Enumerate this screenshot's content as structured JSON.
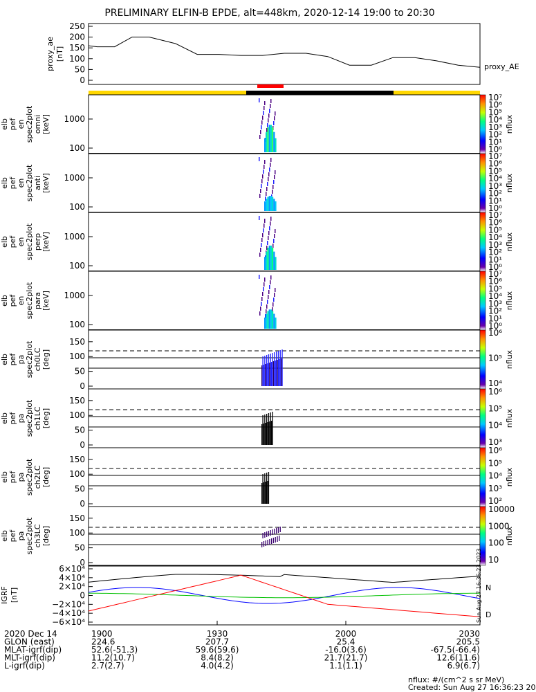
{
  "title": "PRELIMINARY ELFIN-B EPDE, alt=448km, 2020-12-14 19:00 to 20:30",
  "colors": {
    "bar_yellow": "#ffd700",
    "bar_black": "#000000",
    "bar_red": "#ff0000",
    "bx": "#0000ff",
    "by": "#00c000",
    "bz": "#000000",
    "bd": "#ff0000"
  },
  "panels": {
    "ae": {
      "ylabel": [
        "proxy_ae",
        "[nT]"
      ],
      "legend": "proxy_AE"
    },
    "en": [
      {
        "ylabel": [
          "elb",
          "pef",
          "en",
          "spec2plot",
          "omni",
          "[keV]"
        ],
        "cb_label": "nflux"
      },
      {
        "ylabel": [
          "elb",
          "pef",
          "en",
          "spec2plot",
          "anti",
          "[keV]"
        ],
        "cb_label": "nflux"
      },
      {
        "ylabel": [
          "elb",
          "pef",
          "en",
          "spec2plot",
          "perp",
          "[keV]"
        ],
        "cb_label": "nflux"
      },
      {
        "ylabel": [
          "elb",
          "pef",
          "en",
          "spec2plot",
          "para",
          "[keV]"
        ],
        "cb_label": "nflux"
      }
    ],
    "pa": [
      {
        "ylabel": [
          "elb",
          "pef",
          "pa",
          "spec2plot",
          "ch0LC",
          "[deg]"
        ],
        "cb_label": "nflux"
      },
      {
        "ylabel": [
          "elb",
          "pef",
          "pa",
          "spec2plot",
          "ch1LC",
          "[deg]"
        ],
        "cb_label": "nflux"
      },
      {
        "ylabel": [
          "elb",
          "pef",
          "pa",
          "spec2plot",
          "ch2LC",
          "[deg]"
        ],
        "cb_label": "nflux"
      },
      {
        "ylabel": [
          "elb",
          "pef",
          "pa",
          "spec2plot",
          "ch3LC",
          "[deg]"
        ],
        "cb_label": "nflux"
      }
    ],
    "igrf": {
      "ylabel": [
        "IGRF",
        "[nT]"
      ],
      "comp_n": "N",
      "comp_d": "D",
      "timestamp": "Sun Aug 27 16:36:23 2023"
    }
  },
  "chart_data": {
    "type": "line",
    "time_range": [
      "2020-12-14 19:00",
      "2020-12-14 20:30"
    ],
    "proxy_ae": {
      "ylim": [
        0,
        250
      ],
      "ticks": [
        "250",
        "200",
        "150",
        "100",
        "50",
        "0"
      ],
      "x_min": [
        0,
        2,
        6,
        10,
        14,
        20,
        25,
        30,
        35,
        40,
        45,
        50,
        55,
        60,
        65,
        70,
        75,
        80,
        85,
        90
      ],
      "values": [
        160,
        155,
        155,
        200,
        200,
        170,
        120,
        120,
        115,
        115,
        125,
        125,
        110,
        70,
        70,
        105,
        105,
        90,
        70,
        60
      ]
    },
    "energy_ticks": [
      "1000",
      "100"
    ],
    "energy_cb": {
      "omni": [
        "10⁷",
        "10⁶",
        "10⁵",
        "10⁴",
        "10³",
        "10²",
        "10¹",
        "10⁰"
      ],
      "anti": [
        "10⁷",
        "10⁶",
        "10⁵",
        "10⁴",
        "10³",
        "10²",
        "10¹",
        "10⁰"
      ],
      "perp": [
        "10⁷",
        "10⁶",
        "10⁵",
        "10⁴",
        "10³",
        "10²",
        "10¹",
        "10⁰"
      ],
      "para": [
        "10⁷",
        "10⁶",
        "10⁵",
        "10⁴",
        "10³",
        "10²",
        "10¹",
        "10⁰"
      ]
    },
    "pa_ticks": [
      "150",
      "100",
      "50",
      "0"
    ],
    "pa_cb": {
      "ch0LC": [
        "10⁶",
        "10⁵",
        "10⁴"
      ],
      "ch1LC": [
        "10⁶",
        "10⁵",
        "10⁴",
        "10³"
      ],
      "ch2LC": [
        "10⁶",
        "10⁵",
        "10⁴",
        "10³",
        "10²"
      ],
      "ch3LC": [
        "10000",
        "1000",
        "100",
        "10"
      ]
    },
    "igrf": {
      "ticks": [
        "6×10⁴",
        "4×10⁴",
        "2×10⁴",
        "0",
        "−2×10⁴",
        "−4×10⁴",
        "−6×10⁴"
      ],
      "ylim": [
        -60000,
        60000
      ]
    },
    "x_axis": {
      "ticks": [
        "1900",
        "1930",
        "2000",
        "2030"
      ],
      "rows": [
        {
          "label": "2020 Dec 14",
          "vals": [
            "1900",
            "1930",
            "2000",
            "2030"
          ]
        },
        {
          "label": "GLON (east)",
          "vals": [
            "224.6",
            "207.7",
            "25.4",
            "205.5"
          ]
        },
        {
          "label": "MLAT-igrf(dip)",
          "vals": [
            "52.6(-51.3)",
            "59.6(59.6)",
            "-16.0(3.6)",
            "-67.5(-66.4)"
          ]
        },
        {
          "label": "MLT-igrf(dip)",
          "vals": [
            "11.2(10.7)",
            "8.4(8.2)",
            "21.7(21.7)",
            "12.6(11.6)"
          ]
        },
        {
          "label": "L-igrf(dip)",
          "vals": [
            "2.7(2.7)",
            "4.0(4.2)",
            "1.1(1.1)",
            "6.9(6.7)"
          ]
        }
      ]
    },
    "footer": [
      "nflux: #/(cm^2 s sr MeV)",
      "Created: Sun Aug 27 16:36:23 2023"
    ]
  }
}
